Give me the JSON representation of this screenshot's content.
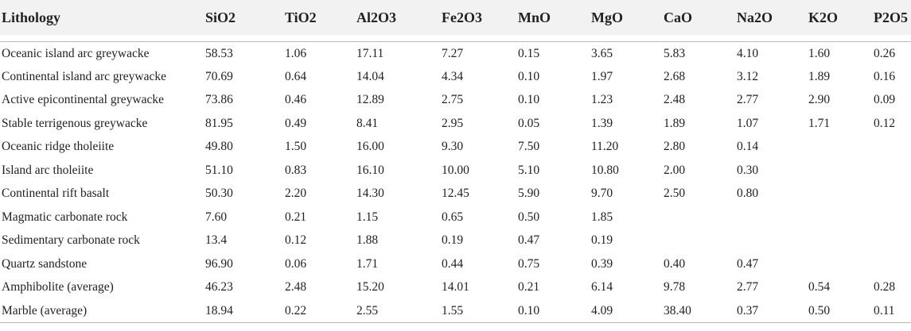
{
  "table": {
    "headers": [
      "Lithology",
      "SiO2",
      "TiO2",
      "Al2O3",
      "Fe2O3",
      "MnO",
      "MgO",
      "CaO",
      "Na2O",
      "K2O",
      "P2O5"
    ],
    "rows": [
      [
        "Oceanic island arc greywacke",
        "58.53",
        "1.06",
        "17.11",
        "7.27",
        "0.15",
        "3.65",
        "5.83",
        "4.10",
        "1.60",
        "0.26"
      ],
      [
        "Continental island arc greywacke",
        "70.69",
        "0.64",
        "14.04",
        "4.34",
        "0.10",
        "1.97",
        "2.68",
        "3.12",
        "1.89",
        "0.16"
      ],
      [
        "Active epicontinental greywacke",
        "73.86",
        "0.46",
        "12.89",
        "2.75",
        "0.10",
        "1.23",
        "2.48",
        "2.77",
        "2.90",
        "0.09"
      ],
      [
        "Stable terrigenous greywacke",
        "81.95",
        "0.49",
        "8.41",
        "2.95",
        "0.05",
        "1.39",
        "1.89",
        "1.07",
        "1.71",
        "0.12"
      ],
      [
        "Oceanic ridge tholeiite",
        "49.80",
        "1.50",
        "16.00",
        "9.30",
        "7.50",
        "11.20",
        "2.80",
        "0.14",
        "",
        ""
      ],
      [
        "Island arc tholeiite",
        "51.10",
        "0.83",
        "16.10",
        "10.00",
        "5.10",
        "10.80",
        "2.00",
        "0.30",
        "",
        ""
      ],
      [
        "Continental rift basalt",
        "50.30",
        "2.20",
        "14.30",
        "12.45",
        "5.90",
        "9.70",
        "2.50",
        "0.80",
        "",
        ""
      ],
      [
        "Magmatic carbonate rock",
        "7.60",
        "0.21",
        "1.15",
        "0.65",
        "0.50",
        "1.85",
        "",
        "",
        "",
        ""
      ],
      [
        "Sedimentary carbonate rock",
        "13.4",
        "0.12",
        "1.88",
        "0.19",
        "0.47",
        "0.19",
        "",
        "",
        "",
        ""
      ],
      [
        "Quartz sandstone",
        "96.90",
        "0.06",
        "1.71",
        "0.44",
        "0.75",
        "0.39",
        "0.40",
        "0.47",
        "",
        ""
      ],
      [
        "Amphibolite (average)",
        "46.23",
        "2.48",
        "15.20",
        "14.01",
        "0.21",
        "6.14",
        "9.78",
        "2.77",
        "0.54",
        "0.28"
      ],
      [
        "Marble (average)",
        "18.94",
        "0.22",
        "2.55",
        "1.55",
        "0.10",
        "4.09",
        "38.40",
        "0.37",
        "0.50",
        "0.11"
      ]
    ]
  }
}
